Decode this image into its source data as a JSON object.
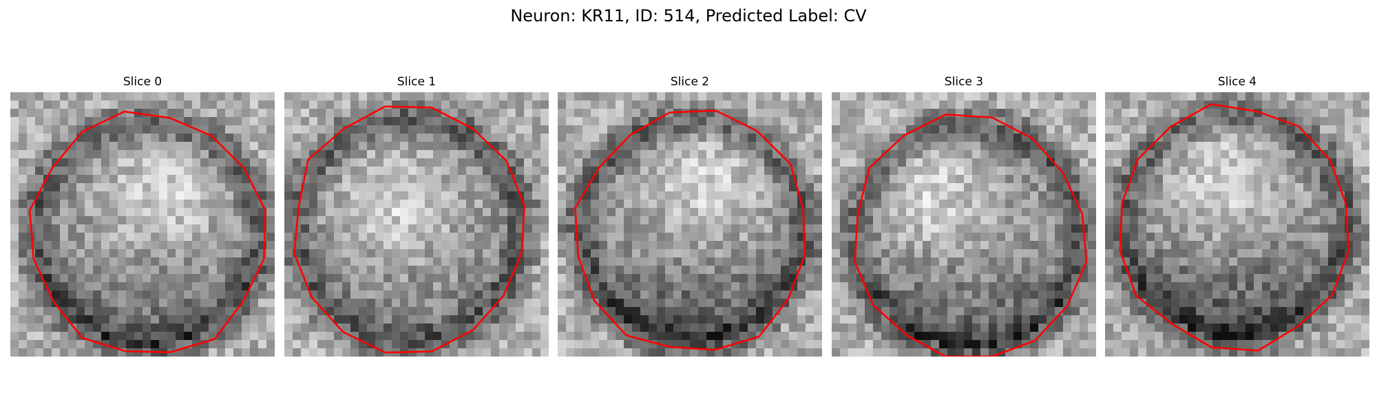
{
  "figure": {
    "title": "Neuron: KR11, ID: 514, Predicted Label: CV",
    "contour_color": "#ff0000",
    "colormap": "grayscale"
  },
  "panels": [
    {
      "label": "Slice 0",
      "center": [
        0.52,
        0.54
      ],
      "bright": [
        0.58,
        0.38
      ],
      "dark_bottom": 0.25,
      "seed": 11
    },
    {
      "label": "Slice 1",
      "center": [
        0.47,
        0.52
      ],
      "bright": [
        0.42,
        0.42
      ],
      "dark_bottom": 0.1,
      "seed": 23
    },
    {
      "label": "Slice 2",
      "center": [
        0.51,
        0.53
      ],
      "bright": [
        0.56,
        0.35
      ],
      "dark_bottom": 0.35,
      "seed": 37
    },
    {
      "label": "Slice 3",
      "center": [
        0.52,
        0.55
      ],
      "bright": [
        0.38,
        0.38
      ],
      "dark_bottom": 0.3,
      "seed": 41
    },
    {
      "label": "Slice 4",
      "center": [
        0.49,
        0.51
      ],
      "bright": [
        0.45,
        0.33
      ],
      "dark_bottom": 0.4,
      "seed": 53
    }
  ]
}
